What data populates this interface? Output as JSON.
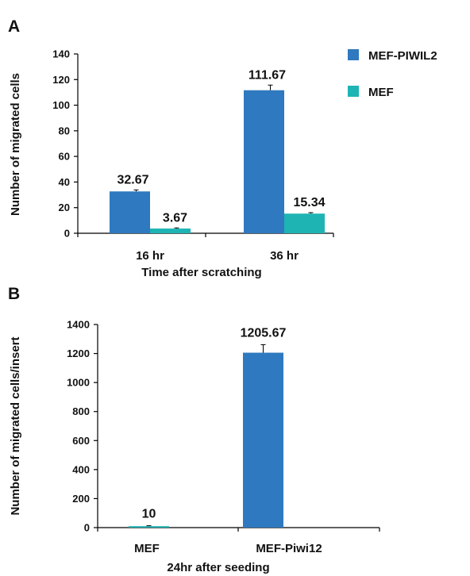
{
  "chart_data": [
    {
      "panel": "A",
      "type": "bar",
      "categories": [
        "16 hr",
        "36 hr"
      ],
      "series": [
        {
          "name": "MEF-PIWIL2",
          "values": [
            32.67,
            111.67
          ],
          "errors": [
            1.2,
            4.0
          ],
          "labels": [
            "32.67",
            "111.67"
          ]
        },
        {
          "name": "MEF",
          "values": [
            3.67,
            15.34
          ],
          "errors": [
            0.5,
            0.8
          ],
          "labels": [
            "3.67",
            "15.34"
          ]
        }
      ],
      "xlabel": "Time after scratching",
      "ylabel": "Number of migrated cells",
      "ylim": [
        0,
        140
      ],
      "yticks": [
        0,
        20,
        40,
        60,
        80,
        100,
        120,
        140
      ],
      "legend": "top-right",
      "grid": false
    },
    {
      "panel": "B",
      "type": "bar",
      "categories": [
        "MEF",
        "MEF-Piwi12"
      ],
      "values": [
        10,
        1205.67
      ],
      "errors": [
        3,
        55
      ],
      "labels": [
        "10",
        "1205.67"
      ],
      "xlabel": "24hr after seeding",
      "ylabel": "Number of migrated cells/insert",
      "ylim": [
        0,
        1400
      ],
      "yticks": [
        0,
        200,
        400,
        600,
        800,
        1000,
        1200,
        1400
      ],
      "legend": "none",
      "grid": false
    }
  ],
  "colors": {
    "mef_piwil2": "#2e79bf",
    "mef": "#1eb4b4",
    "axis": "#000000"
  }
}
